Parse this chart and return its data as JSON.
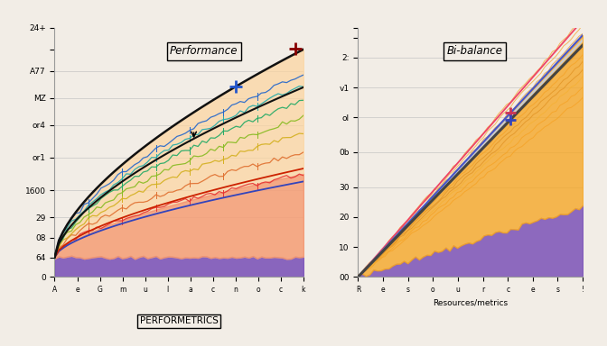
{
  "title_left": "Performance",
  "title_right": "Bi-balance",
  "xlabel_left": "PERFORMETRICS",
  "xlabel_right": "Resources/metrics",
  "bg_color": "#f2ede6",
  "purple_color": "#7b52b8",
  "orange_fill": "#f5a623",
  "orange_light": "#fcd5a0",
  "red_line": "#cc2200",
  "blue_line": "#3344bb",
  "black_line": "#111111",
  "rainbow_colors": [
    "#e63333",
    "#e07030",
    "#d4b020",
    "#88bb22",
    "#22aa66",
    "#22aaaa",
    "#2266cc"
  ],
  "left_ytick_labels": [
    "0",
    "64",
    "08",
    "29",
    "1600",
    "or1",
    "or4",
    "MZ",
    "A77",
    "",
    "24+"
  ],
  "left_ytick_vals": [
    0,
    18,
    36,
    55,
    80,
    110,
    140,
    165,
    190,
    210,
    230
  ],
  "right_ytick_labels": [
    "00",
    "10",
    "20",
    "30",
    "0b",
    "ol",
    "v1",
    "2:",
    "",
    ""
  ],
  "right_ytick_vals": [
    0,
    12,
    24,
    36,
    50,
    64,
    76,
    88,
    96,
    100
  ]
}
